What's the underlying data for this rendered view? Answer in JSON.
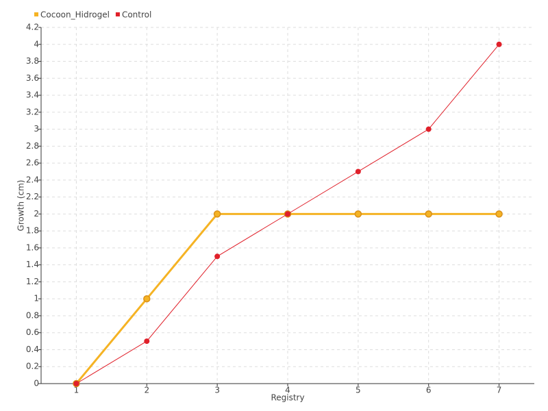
{
  "chart_data": {
    "type": "line",
    "x_label": "Registry",
    "y_label": "Growth (cm)",
    "x": [
      1,
      2,
      3,
      4,
      5,
      6,
      7
    ],
    "xlim": [
      0.5,
      7.5
    ],
    "xticks": [
      1,
      2,
      3,
      4,
      5,
      6,
      7
    ],
    "ylim": [
      0,
      4.2
    ],
    "yticks": [
      0,
      0.2,
      0.4,
      0.6,
      0.8,
      1,
      1.2,
      1.4,
      1.6,
      1.8,
      2,
      2.2,
      2.4,
      2.6,
      2.8,
      3,
      3.2,
      3.4,
      3.6,
      3.8,
      4,
      4.2
    ],
    "grid": true,
    "legend": "top-left",
    "series": [
      {
        "name": "Cocoon_Hidrogel",
        "color": "#f5b324",
        "values": [
          0,
          1,
          2,
          2,
          2,
          2,
          2
        ]
      },
      {
        "name": "Control",
        "color": "#e0202a",
        "values": [
          0,
          0.5,
          1.5,
          2,
          2.5,
          3,
          4
        ]
      }
    ]
  }
}
